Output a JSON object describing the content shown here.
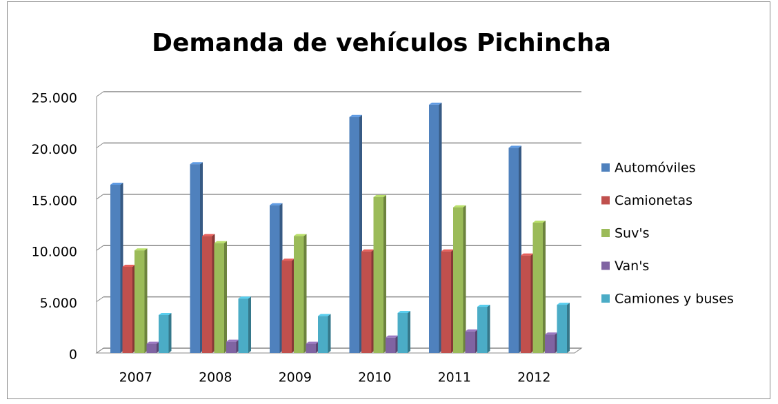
{
  "chart_data": {
    "type": "bar",
    "title": "Demanda de vehículos Pichincha",
    "categories": [
      "2007",
      "2008",
      "2009",
      "2010",
      "2011",
      "2012"
    ],
    "series": [
      {
        "name": "Automóviles",
        "color": "#4f81bd",
        "values": [
          16400,
          18400,
          14400,
          23000,
          24200,
          20000
        ]
      },
      {
        "name": "Camionetas",
        "color": "#c0504d",
        "values": [
          8400,
          11400,
          9000,
          9900,
          9900,
          9500
        ]
      },
      {
        "name": "Suv's",
        "color": "#9bbb59",
        "values": [
          10000,
          10700,
          11400,
          15200,
          14200,
          12700
        ]
      },
      {
        "name": "Van's",
        "color": "#8064a2",
        "values": [
          900,
          1100,
          900,
          1500,
          2100,
          1800
        ]
      },
      {
        "name": "Camiones y buses",
        "color": "#4bacc6",
        "values": [
          3700,
          5300,
          3600,
          3900,
          4500,
          4700
        ]
      }
    ],
    "ylim": [
      0,
      25000
    ],
    "yticks": [
      0,
      {
        "value": 5000,
        "label": "5.000"
      },
      {
        "value": 10000,
        "label": "10.000"
      },
      {
        "value": 15000,
        "label": "15.000"
      },
      {
        "value": 20000,
        "label": "20.000"
      },
      {
        "value": 25000,
        "label": "25.000"
      }
    ],
    "grid": true,
    "legend": "right"
  }
}
